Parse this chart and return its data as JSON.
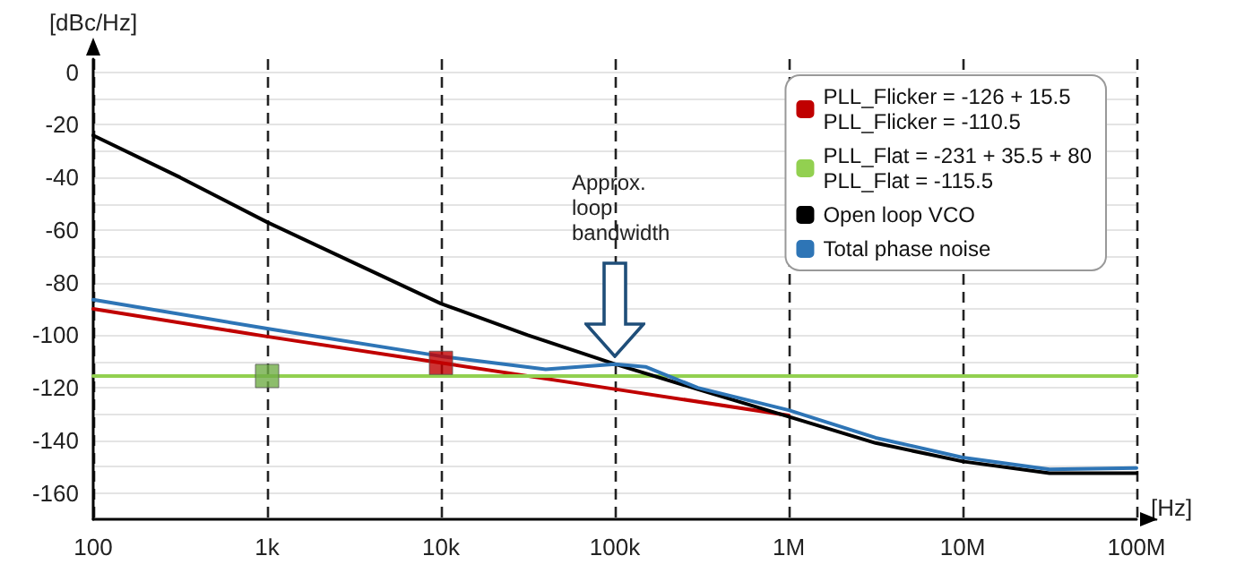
{
  "chart_data": {
    "type": "line",
    "xlabel": "[Hz]",
    "ylabel": "[dBc/Hz]",
    "log": "x",
    "xlim": [
      100,
      100000000
    ],
    "xticks": [
      {
        "value": 100,
        "label": "100"
      },
      {
        "value": 1000,
        "label": "1k"
      },
      {
        "value": 10000,
        "label": "10k"
      },
      {
        "value": 100000,
        "label": "100k"
      },
      {
        "value": 1000000,
        "label": "1M"
      },
      {
        "value": 10000000,
        "label": "10M"
      },
      {
        "value": 100000000,
        "label": "100M"
      }
    ],
    "ylim": [
      -170,
      5
    ],
    "yticks": [
      -160,
      {
        "value": -150,
        "label": null
      },
      -140,
      {
        "value": -130,
        "label": null
      },
      -120,
      {
        "value": -110,
        "label": null
      },
      -100,
      {
        "value": -90,
        "label": null
      },
      -80,
      {
        "value": -70,
        "label": null
      },
      -60,
      {
        "value": -50,
        "label": null
      },
      -40,
      {
        "value": -30,
        "label": null
      },
      -20,
      {
        "value": -10,
        "label": null
      },
      0
    ],
    "grid": true,
    "legend": "top right",
    "series": [
      {
        "name": "PLL_Flicker = -126 + 15.5\nPLL_Flicker = -110.5",
        "color": "#c00000",
        "x": [
          100,
          1000,
          10000,
          100000,
          1000000
        ],
        "values": [
          -90,
          -100.5,
          -110.5,
          -120.5,
          -130.5
        ]
      },
      {
        "name": "PLL_Flat = -231 + 35.5 + 80\nPLL_Flat = -115.5",
        "color": "#92d050",
        "x": [
          100,
          100000000
        ],
        "values": [
          -115.5,
          -115.5
        ]
      },
      {
        "name": "Open loop VCO",
        "color": "#000000",
        "x": [
          100,
          316,
          1000,
          3160,
          10000,
          31600,
          100000,
          316000,
          1000000,
          3160000,
          10000000,
          31600000,
          100000000
        ],
        "values": [
          -24,
          -40,
          -57,
          -72.5,
          -88,
          -100,
          -111,
          -121,
          -131,
          -141,
          -148,
          -152.5,
          -152.5
        ]
      },
      {
        "name": "Total phase noise",
        "color": "#2e75b6",
        "x": [
          100,
          1000,
          10000,
          40000,
          100000,
          150000,
          300000,
          1000000,
          3160000,
          10000000,
          31600000,
          100000000
        ],
        "values": [
          -86.5,
          -97.5,
          -108,
          -113,
          -111,
          -112,
          -120,
          -128.5,
          -139,
          -146.5,
          -151,
          -150.5
        ]
      },
      {
        "type": "scatter",
        "marker": "square",
        "color": "#c00000",
        "x": [
          10000
        ],
        "values": [
          -110.5
        ]
      },
      {
        "type": "scatter",
        "marker": "square",
        "color": "#70ad47",
        "x": [
          1000
        ],
        "values": [
          -115.5
        ]
      }
    ],
    "annotations": [
      "Approx. loop bandwidth"
    ]
  }
}
